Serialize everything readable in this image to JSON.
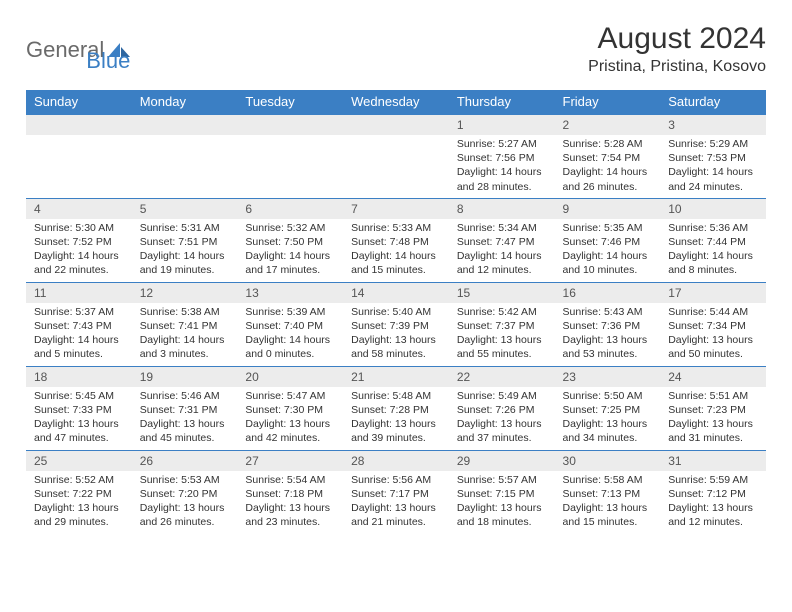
{
  "logo": {
    "part1": "General",
    "part2": "Blue"
  },
  "title": "August 2024",
  "location": "Pristina, Pristina, Kosovo",
  "colors": {
    "header_bg": "#3b7fc4",
    "header_text": "#ffffff",
    "daynum_bg": "#ececec",
    "border": "#3b7fc4",
    "body_text": "#333333"
  },
  "weekdays": [
    "Sunday",
    "Monday",
    "Tuesday",
    "Wednesday",
    "Thursday",
    "Friday",
    "Saturday"
  ],
  "weeks": [
    [
      null,
      null,
      null,
      null,
      {
        "num": "1",
        "sunrise": "5:27 AM",
        "sunset": "7:56 PM",
        "daylight": "14 hours and 28 minutes."
      },
      {
        "num": "2",
        "sunrise": "5:28 AM",
        "sunset": "7:54 PM",
        "daylight": "14 hours and 26 minutes."
      },
      {
        "num": "3",
        "sunrise": "5:29 AM",
        "sunset": "7:53 PM",
        "daylight": "14 hours and 24 minutes."
      }
    ],
    [
      {
        "num": "4",
        "sunrise": "5:30 AM",
        "sunset": "7:52 PM",
        "daylight": "14 hours and 22 minutes."
      },
      {
        "num": "5",
        "sunrise": "5:31 AM",
        "sunset": "7:51 PM",
        "daylight": "14 hours and 19 minutes."
      },
      {
        "num": "6",
        "sunrise": "5:32 AM",
        "sunset": "7:50 PM",
        "daylight": "14 hours and 17 minutes."
      },
      {
        "num": "7",
        "sunrise": "5:33 AM",
        "sunset": "7:48 PM",
        "daylight": "14 hours and 15 minutes."
      },
      {
        "num": "8",
        "sunrise": "5:34 AM",
        "sunset": "7:47 PM",
        "daylight": "14 hours and 12 minutes."
      },
      {
        "num": "9",
        "sunrise": "5:35 AM",
        "sunset": "7:46 PM",
        "daylight": "14 hours and 10 minutes."
      },
      {
        "num": "10",
        "sunrise": "5:36 AM",
        "sunset": "7:44 PM",
        "daylight": "14 hours and 8 minutes."
      }
    ],
    [
      {
        "num": "11",
        "sunrise": "5:37 AM",
        "sunset": "7:43 PM",
        "daylight": "14 hours and 5 minutes."
      },
      {
        "num": "12",
        "sunrise": "5:38 AM",
        "sunset": "7:41 PM",
        "daylight": "14 hours and 3 minutes."
      },
      {
        "num": "13",
        "sunrise": "5:39 AM",
        "sunset": "7:40 PM",
        "daylight": "14 hours and 0 minutes."
      },
      {
        "num": "14",
        "sunrise": "5:40 AM",
        "sunset": "7:39 PM",
        "daylight": "13 hours and 58 minutes."
      },
      {
        "num": "15",
        "sunrise": "5:42 AM",
        "sunset": "7:37 PM",
        "daylight": "13 hours and 55 minutes."
      },
      {
        "num": "16",
        "sunrise": "5:43 AM",
        "sunset": "7:36 PM",
        "daylight": "13 hours and 53 minutes."
      },
      {
        "num": "17",
        "sunrise": "5:44 AM",
        "sunset": "7:34 PM",
        "daylight": "13 hours and 50 minutes."
      }
    ],
    [
      {
        "num": "18",
        "sunrise": "5:45 AM",
        "sunset": "7:33 PM",
        "daylight": "13 hours and 47 minutes."
      },
      {
        "num": "19",
        "sunrise": "5:46 AM",
        "sunset": "7:31 PM",
        "daylight": "13 hours and 45 minutes."
      },
      {
        "num": "20",
        "sunrise": "5:47 AM",
        "sunset": "7:30 PM",
        "daylight": "13 hours and 42 minutes."
      },
      {
        "num": "21",
        "sunrise": "5:48 AM",
        "sunset": "7:28 PM",
        "daylight": "13 hours and 39 minutes."
      },
      {
        "num": "22",
        "sunrise": "5:49 AM",
        "sunset": "7:26 PM",
        "daylight": "13 hours and 37 minutes."
      },
      {
        "num": "23",
        "sunrise": "5:50 AM",
        "sunset": "7:25 PM",
        "daylight": "13 hours and 34 minutes."
      },
      {
        "num": "24",
        "sunrise": "5:51 AM",
        "sunset": "7:23 PM",
        "daylight": "13 hours and 31 minutes."
      }
    ],
    [
      {
        "num": "25",
        "sunrise": "5:52 AM",
        "sunset": "7:22 PM",
        "daylight": "13 hours and 29 minutes."
      },
      {
        "num": "26",
        "sunrise": "5:53 AM",
        "sunset": "7:20 PM",
        "daylight": "13 hours and 26 minutes."
      },
      {
        "num": "27",
        "sunrise": "5:54 AM",
        "sunset": "7:18 PM",
        "daylight": "13 hours and 23 minutes."
      },
      {
        "num": "28",
        "sunrise": "5:56 AM",
        "sunset": "7:17 PM",
        "daylight": "13 hours and 21 minutes."
      },
      {
        "num": "29",
        "sunrise": "5:57 AM",
        "sunset": "7:15 PM",
        "daylight": "13 hours and 18 minutes."
      },
      {
        "num": "30",
        "sunrise": "5:58 AM",
        "sunset": "7:13 PM",
        "daylight": "13 hours and 15 minutes."
      },
      {
        "num": "31",
        "sunrise": "5:59 AM",
        "sunset": "7:12 PM",
        "daylight": "13 hours and 12 minutes."
      }
    ]
  ],
  "labels": {
    "sunrise": "Sunrise:",
    "sunset": "Sunset:",
    "daylight": "Daylight:"
  }
}
